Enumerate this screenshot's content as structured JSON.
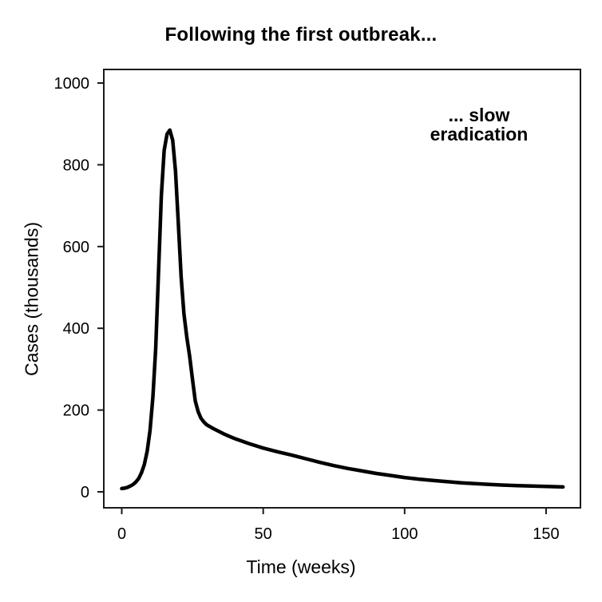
{
  "chart_data": {
    "type": "line",
    "title": "Following the first outbreak...",
    "xlabel": "Time (weeks)",
    "ylabel": "Cases (thousands)",
    "annotation_lines": [
      "... slow",
      "eradication"
    ],
    "series_name": "cases-thousands",
    "x": [
      0,
      1,
      2,
      3,
      4,
      5,
      6,
      7,
      8,
      9,
      10,
      11,
      12,
      13,
      14,
      15,
      16,
      17,
      18,
      19,
      20,
      21,
      22,
      23,
      24,
      25,
      26,
      27,
      28,
      29,
      30,
      32,
      34,
      36,
      38,
      40,
      45,
      50,
      55,
      60,
      65,
      70,
      75,
      80,
      85,
      90,
      95,
      100,
      105,
      110,
      115,
      120,
      125,
      130,
      135,
      140,
      145,
      150,
      156
    ],
    "y": [
      8,
      9,
      11,
      14,
      18,
      24,
      33,
      47,
      67,
      100,
      150,
      232,
      350,
      540,
      725,
      835,
      875,
      885,
      860,
      785,
      655,
      525,
      435,
      378,
      332,
      275,
      222,
      196,
      180,
      171,
      164,
      156,
      149,
      142,
      136,
      130,
      118,
      107,
      98,
      90,
      81,
      72,
      64,
      57,
      51,
      45,
      40,
      35,
      31,
      28,
      25,
      22,
      20,
      18,
      16.5,
      15,
      14,
      13,
      12
    ],
    "peak": {
      "week": 17,
      "cases_thousands": 885
    },
    "xticks": [
      0,
      50,
      100,
      150
    ],
    "yticks": [
      0,
      200,
      400,
      600,
      800,
      1000
    ],
    "xlim": [
      -6,
      162
    ],
    "ylim": [
      -40,
      1035
    ],
    "grid": false,
    "legend": "none",
    "line_color": "#000000",
    "frame_color": "#1a1a1a",
    "background_color": "#ffffff"
  }
}
